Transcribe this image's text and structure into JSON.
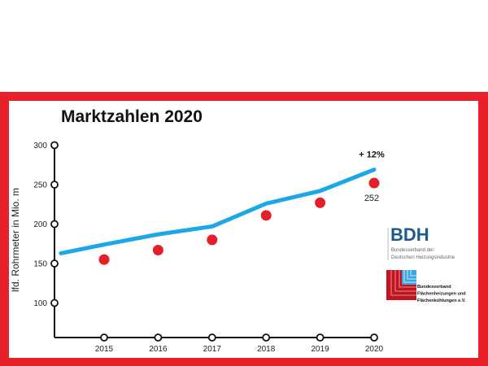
{
  "chart_data": {
    "type": "line",
    "title": "Marktzahlen 2020",
    "xlabel": "",
    "ylabel": "lfd. Rohrmeter in Mio. m",
    "x": [
      2015,
      2016,
      2017,
      2018,
      2019,
      2020
    ],
    "x_tick_labels": [
      "2015",
      "2016",
      "2017",
      "2018",
      "2019",
      "2020"
    ],
    "y_ticks": [
      100,
      150,
      200,
      250,
      300
    ],
    "y_tick_labels": [
      "100",
      "150",
      "200",
      "250",
      "300"
    ],
    "ylim": [
      60,
      300
    ],
    "grid": false,
    "series": [
      {
        "type": "line",
        "color": "#1ea7e8",
        "x": [
          2014.2,
          2015,
          2016,
          2017,
          2018,
          2019,
          2020
        ],
        "values": [
          163,
          174,
          187,
          197,
          226,
          242,
          269
        ]
      },
      {
        "type": "scatter",
        "color": "#e3202a",
        "x": [
          2015,
          2016,
          2017,
          2018,
          2019,
          2020
        ],
        "values": [
          155,
          167,
          180,
          211,
          227,
          252
        ]
      }
    ],
    "annotations": [
      {
        "text": "+ 12%",
        "x": 2020,
        "target": "line"
      },
      {
        "text": "252",
        "x": 2020,
        "target": "scatter"
      }
    ]
  },
  "logos": {
    "bdh": {
      "name": "BDH",
      "line1": "Bundesverband der",
      "line2": "Deutschen Heizungsindustrie",
      "color": "#1a5a8e"
    },
    "bvf": {
      "line1": "Bundesverband",
      "line2": "Flächenheizungen und",
      "line3": "Flächenkühlungen e.V."
    }
  },
  "colors": {
    "frame": "#e8202a"
  }
}
